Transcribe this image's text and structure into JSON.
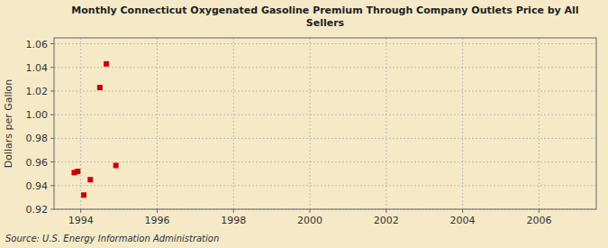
{
  "chart_data": {
    "type": "scatter",
    "title": "Monthly Connecticut Oxygenated Gasoline Premium Through Company Outlets Price by All\nSellers",
    "y_label": "Dollars per Gallon",
    "source": "Source: U.S. Energy Information Administration",
    "x": [
      1993.83,
      1993.92,
      1994.08,
      1994.25,
      1994.5,
      1994.67,
      1994.92
    ],
    "values": [
      0.951,
      0.952,
      0.932,
      0.945,
      1.023,
      1.043,
      0.957
    ],
    "color": "#cc0000",
    "marker": "square",
    "xlim": [
      1993.3,
      2007.5
    ],
    "ylim": [
      0.92,
      1.065
    ],
    "xticks": [
      1994,
      1996,
      1998,
      2000,
      2002,
      2004,
      2006
    ],
    "yticks": [
      0.92,
      0.94,
      0.96,
      0.98,
      {
        "value": 1.0,
        "label": "1.00"
      },
      1.02,
      1.04,
      1.06
    ],
    "grid": true
  }
}
